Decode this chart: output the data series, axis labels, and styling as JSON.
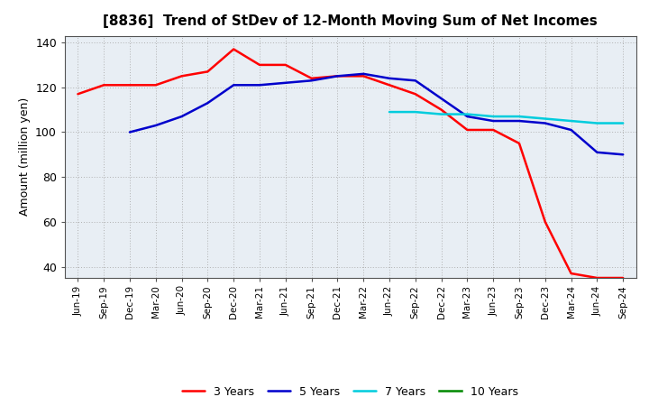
{
  "title": "[8836]  Trend of StDev of 12-Month Moving Sum of Net Incomes",
  "ylabel": "Amount (million yen)",
  "ylim": [
    35,
    143
  ],
  "yticks": [
    40,
    60,
    80,
    100,
    120,
    140
  ],
  "plot_bg_color": "#e8eef4",
  "fig_bg_color": "#ffffff",
  "grid_color": "#aaaaaa",
  "series": {
    "3 Years": {
      "color": "#ff0000",
      "x": [
        "Jun-19",
        "Sep-19",
        "Dec-19",
        "Mar-20",
        "Jun-20",
        "Sep-20",
        "Dec-20",
        "Mar-21",
        "Jun-21",
        "Sep-21",
        "Dec-21",
        "Mar-22",
        "Jun-22",
        "Sep-22",
        "Dec-22",
        "Mar-23",
        "Jun-23",
        "Sep-23",
        "Dec-23",
        "Mar-24",
        "Jun-24",
        "Sep-24"
      ],
      "y": [
        117,
        121,
        121,
        121,
        125,
        127,
        137,
        130,
        130,
        124,
        125,
        125,
        121,
        117,
        110,
        101,
        101,
        95,
        60,
        37,
        35,
        35
      ]
    },
    "5 Years": {
      "color": "#0000cc",
      "x": [
        "Dec-19",
        "Mar-20",
        "Jun-20",
        "Sep-20",
        "Dec-20",
        "Mar-21",
        "Jun-21",
        "Sep-21",
        "Dec-21",
        "Mar-22",
        "Jun-22",
        "Sep-22",
        "Dec-22",
        "Mar-23",
        "Jun-23",
        "Sep-23",
        "Dec-23",
        "Mar-24",
        "Jun-24",
        "Sep-24"
      ],
      "y": [
        100,
        103,
        107,
        113,
        121,
        121,
        122,
        123,
        125,
        126,
        124,
        123,
        115,
        107,
        105,
        105,
        104,
        101,
        91,
        90
      ]
    },
    "7 Years": {
      "color": "#00ccdd",
      "x": [
        "Jun-22",
        "Sep-22",
        "Dec-22",
        "Mar-23",
        "Jun-23",
        "Sep-23",
        "Dec-23",
        "Mar-24",
        "Jun-24",
        "Sep-24"
      ],
      "y": [
        109,
        109,
        108,
        108,
        107,
        107,
        106,
        105,
        104,
        104
      ]
    },
    "10 Years": {
      "color": "#008800",
      "x": [],
      "y": []
    }
  },
  "x_labels": [
    "Jun-19",
    "Sep-19",
    "Dec-19",
    "Mar-20",
    "Jun-20",
    "Sep-20",
    "Dec-20",
    "Mar-21",
    "Jun-21",
    "Sep-21",
    "Dec-21",
    "Mar-22",
    "Jun-22",
    "Sep-22",
    "Dec-22",
    "Mar-23",
    "Jun-23",
    "Sep-23",
    "Dec-23",
    "Mar-24",
    "Jun-24",
    "Sep-24"
  ]
}
